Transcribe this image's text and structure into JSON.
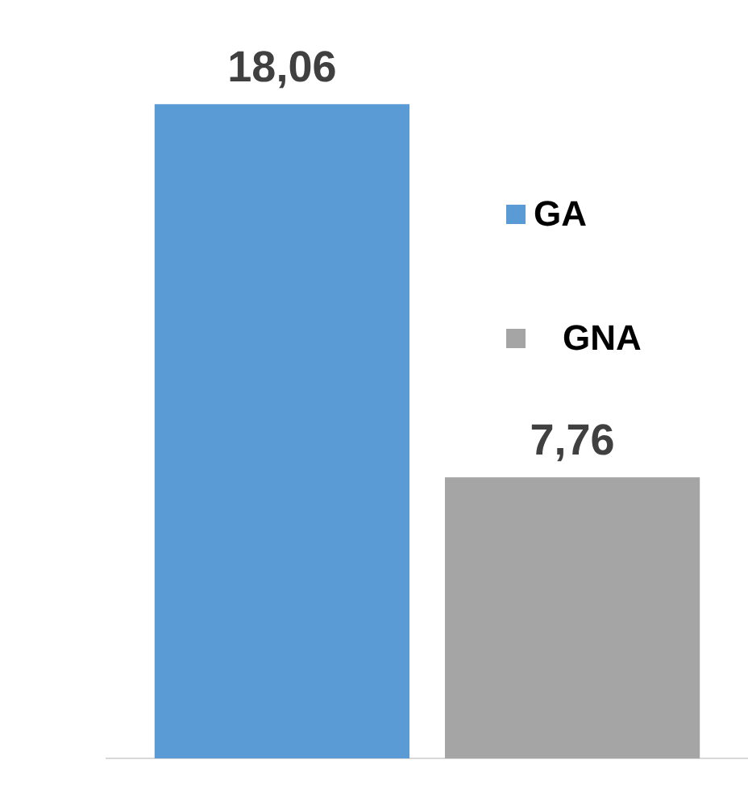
{
  "chart_data": {
    "type": "bar",
    "categories": [
      null
    ],
    "series": [
      {
        "name": "GA",
        "color": "#5b9bd5",
        "values": [
          18.06
        ],
        "value_labels": [
          "18,06"
        ]
      },
      {
        "name": "GNA",
        "color": "#a5a5a5",
        "values": [
          7.76
        ],
        "value_labels": [
          "7,76"
        ]
      }
    ],
    "grid": false,
    "legend": "top right"
  }
}
